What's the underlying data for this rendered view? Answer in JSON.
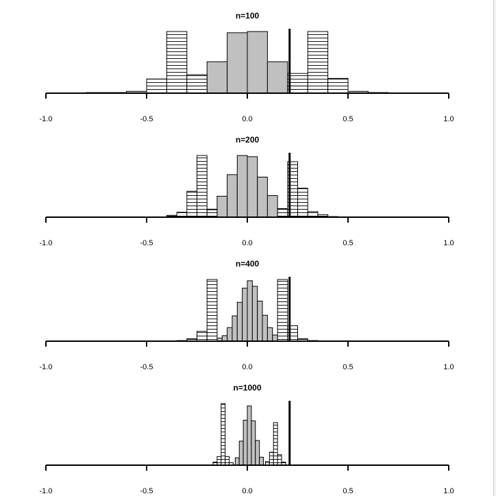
{
  "colors": {
    "background": "#ffffff",
    "gray_bar_fill": "#c0c0c0",
    "outline": "#000000"
  },
  "chart_data": {
    "type": "bar",
    "xlim": [
      -1.0,
      1.0
    ],
    "x_ticks": [
      "-1.0",
      "-0.5",
      "0.0",
      "0.5",
      "1.0"
    ],
    "threshold_line_x": 0.21,
    "panels": [
      {
        "title": "n=100",
        "series": [
          {
            "fill": "gray",
            "bins": [
              {
                "x0": -0.8,
                "x1": -0.6,
                "h": 0.01
              },
              {
                "x0": -0.6,
                "x1": -0.5,
                "h": 0.03
              },
              {
                "x0": -0.5,
                "x1": -0.4,
                "h": 0.05
              },
              {
                "x0": -0.4,
                "x1": -0.3,
                "h": 0.08
              },
              {
                "x0": -0.3,
                "x1": -0.2,
                "h": 0.14
              },
              {
                "x0": -0.2,
                "x1": -0.1,
                "h": 0.51
              },
              {
                "x0": -0.1,
                "x1": 0.0,
                "h": 0.98
              },
              {
                "x0": 0.0,
                "x1": 0.1,
                "h": 1.0
              },
              {
                "x0": 0.1,
                "x1": 0.2,
                "h": 0.51
              },
              {
                "x0": 0.2,
                "x1": 0.3,
                "h": 0.13
              },
              {
                "x0": 0.3,
                "x1": 0.4,
                "h": 0.07
              },
              {
                "x0": 0.4,
                "x1": 0.5,
                "h": 0.04
              },
              {
                "x0": 0.5,
                "x1": 0.6,
                "h": 0.03
              },
              {
                "x0": 0.6,
                "x1": 0.7,
                "h": 0.01
              }
            ]
          },
          {
            "fill": "hatched",
            "bins": [
              {
                "x0": -0.5,
                "x1": -0.4,
                "h": 0.23
              },
              {
                "x0": -0.4,
                "x1": -0.3,
                "h": 1.0
              },
              {
                "x0": -0.3,
                "x1": -0.2,
                "h": 0.3
              },
              {
                "x0": 0.2,
                "x1": 0.3,
                "h": 0.32
              },
              {
                "x0": 0.3,
                "x1": 0.4,
                "h": 1.0
              },
              {
                "x0": 0.4,
                "x1": 0.5,
                "h": 0.24
              }
            ]
          }
        ]
      },
      {
        "title": "n=200",
        "series": [
          {
            "fill": "gray",
            "bins": [
              {
                "x0": -0.35,
                "x1": -0.3,
                "h": 0.01
              },
              {
                "x0": -0.3,
                "x1": -0.25,
                "h": 0.02
              },
              {
                "x0": -0.25,
                "x1": -0.2,
                "h": 0.04
              },
              {
                "x0": -0.2,
                "x1": -0.15,
                "h": 0.13
              },
              {
                "x0": -0.15,
                "x1": -0.1,
                "h": 0.34
              },
              {
                "x0": -0.1,
                "x1": -0.05,
                "h": 0.69
              },
              {
                "x0": -0.05,
                "x1": 0.0,
                "h": 1.0
              },
              {
                "x0": 0.0,
                "x1": 0.05,
                "h": 0.98
              },
              {
                "x0": 0.05,
                "x1": 0.1,
                "h": 0.65
              },
              {
                "x0": 0.1,
                "x1": 0.15,
                "h": 0.35
              },
              {
                "x0": 0.15,
                "x1": 0.2,
                "h": 0.14
              },
              {
                "x0": 0.2,
                "x1": 0.25,
                "h": 0.04
              },
              {
                "x0": 0.25,
                "x1": 0.3,
                "h": 0.02
              },
              {
                "x0": 0.3,
                "x1": 0.35,
                "h": 0.01
              }
            ]
          },
          {
            "fill": "hatched",
            "bins": [
              {
                "x0": -0.4,
                "x1": -0.35,
                "h": 0.03
              },
              {
                "x0": -0.35,
                "x1": -0.3,
                "h": 0.08
              },
              {
                "x0": -0.3,
                "x1": -0.25,
                "h": 0.42
              },
              {
                "x0": -0.25,
                "x1": -0.2,
                "h": 1.0
              },
              {
                "x0": -0.2,
                "x1": -0.15,
                "h": 0.12
              },
              {
                "x0": 0.15,
                "x1": 0.2,
                "h": 0.13
              },
              {
                "x0": 0.2,
                "x1": 0.25,
                "h": 0.9
              },
              {
                "x0": 0.25,
                "x1": 0.3,
                "h": 0.47
              },
              {
                "x0": 0.3,
                "x1": 0.35,
                "h": 0.09
              },
              {
                "x0": 0.35,
                "x1": 0.4,
                "h": 0.04
              },
              {
                "x0": 0.4,
                "x1": 0.45,
                "h": 0.01
              }
            ]
          }
        ]
      },
      {
        "title": "n=400",
        "series": [
          {
            "fill": "gray",
            "bins": [
              {
                "x0": -0.15,
                "x1": -0.125,
                "h": 0.05
              },
              {
                "x0": -0.125,
                "x1": -0.1,
                "h": 0.09
              },
              {
                "x0": -0.1,
                "x1": -0.075,
                "h": 0.22
              },
              {
                "x0": -0.075,
                "x1": -0.05,
                "h": 0.41
              },
              {
                "x0": -0.05,
                "x1": -0.025,
                "h": 0.63
              },
              {
                "x0": -0.025,
                "x1": 0.0,
                "h": 0.86
              },
              {
                "x0": 0.0,
                "x1": 0.025,
                "h": 0.98
              },
              {
                "x0": 0.025,
                "x1": 0.05,
                "h": 0.89
              },
              {
                "x0": 0.05,
                "x1": 0.075,
                "h": 0.65
              },
              {
                "x0": 0.075,
                "x1": 0.1,
                "h": 0.42
              },
              {
                "x0": 0.1,
                "x1": 0.125,
                "h": 0.22
              },
              {
                "x0": 0.125,
                "x1": 0.15,
                "h": 0.1
              },
              {
                "x0": 0.15,
                "x1": 0.175,
                "h": 0.06
              },
              {
                "x0": 0.175,
                "x1": 0.2,
                "h": 0.03
              }
            ]
          },
          {
            "fill": "hatched",
            "bins": [
              {
                "x0": -0.35,
                "x1": -0.3,
                "h": 0.01
              },
              {
                "x0": -0.3,
                "x1": -0.25,
                "h": 0.04
              },
              {
                "x0": -0.25,
                "x1": -0.2,
                "h": 0.16
              },
              {
                "x0": -0.2,
                "x1": -0.15,
                "h": 1.0
              },
              {
                "x0": 0.15,
                "x1": 0.2,
                "h": 1.0
              },
              {
                "x0": 0.2,
                "x1": 0.25,
                "h": 0.25
              },
              {
                "x0": 0.25,
                "x1": 0.3,
                "h": 0.04
              },
              {
                "x0": 0.3,
                "x1": 0.35,
                "h": 0.01
              }
            ]
          }
        ]
      },
      {
        "title": "n=1000",
        "series": [
          {
            "fill": "gray",
            "bins": [
              {
                "x0": -0.06,
                "x1": -0.04,
                "h": 0.12
              },
              {
                "x0": -0.04,
                "x1": -0.02,
                "h": 0.39
              },
              {
                "x0": -0.02,
                "x1": 0.0,
                "h": 0.73
              },
              {
                "x0": 0.0,
                "x1": 0.02,
                "h": 0.96
              },
              {
                "x0": 0.02,
                "x1": 0.04,
                "h": 0.72
              },
              {
                "x0": 0.04,
                "x1": 0.06,
                "h": 0.4
              },
              {
                "x0": 0.06,
                "x1": 0.08,
                "h": 0.13
              }
            ]
          },
          {
            "fill": "hatched",
            "bins": [
              {
                "x0": -0.17,
                "x1": -0.15,
                "h": 0.05
              },
              {
                "x0": -0.15,
                "x1": -0.13,
                "h": 0.14
              },
              {
                "x0": -0.13,
                "x1": -0.11,
                "h": 1.0
              },
              {
                "x0": -0.11,
                "x1": -0.09,
                "h": 0.14
              },
              {
                "x0": -0.09,
                "x1": -0.07,
                "h": 0.04
              },
              {
                "x0": 0.09,
                "x1": 0.11,
                "h": 0.06
              },
              {
                "x0": 0.11,
                "x1": 0.13,
                "h": 0.21
              },
              {
                "x0": 0.13,
                "x1": 0.15,
                "h": 0.69
              },
              {
                "x0": 0.15,
                "x1": 0.17,
                "h": 0.17
              },
              {
                "x0": 0.17,
                "x1": 0.19,
                "h": 0.05
              }
            ]
          }
        ]
      }
    ]
  }
}
